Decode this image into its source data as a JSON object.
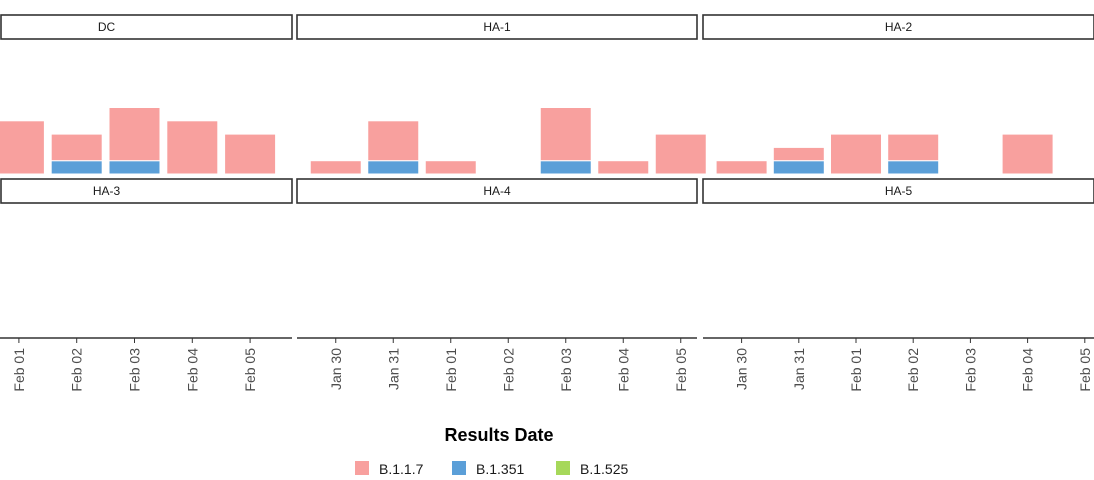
{
  "chart_data": {
    "type": "bar",
    "stacked": true,
    "xlabel": "Results Date",
    "ylabel": "",
    "ylim": [
      0,
      5
    ],
    "grid": false,
    "legend_position": "bottom",
    "series_colors": {
      "B.1.1.7": "#f8a09e",
      "B.1.351": "#5b9fd8",
      "B.1.525": "#a6d85a"
    },
    "legend": [
      {
        "name": "B.1.1.7",
        "color": "#f8a09e"
      },
      {
        "name": "B.1.351",
        "color": "#5b9fd8"
      },
      {
        "name": "B.1.525",
        "color": "#a6d85a"
      }
    ],
    "panels": [
      {
        "name": "DC",
        "dates": [
          "Feb 01",
          "Feb 02",
          "Feb 03",
          "Feb 04",
          "Feb 05"
        ],
        "bars": [
          {
            "date": "Feb 01",
            "B.1.1.7": 4,
            "B.1.351": 0,
            "B.1.525": 0
          },
          {
            "date": "Feb 02",
            "B.1.1.7": 2,
            "B.1.351": 1,
            "B.1.525": 0
          },
          {
            "date": "Feb 03",
            "B.1.1.7": 4,
            "B.1.351": 1,
            "B.1.525": 0
          },
          {
            "date": "Feb 04",
            "B.1.1.7": 4,
            "B.1.351": 0,
            "B.1.525": 0
          },
          {
            "date": "Feb 05",
            "B.1.1.7": 3,
            "B.1.351": 0,
            "B.1.525": 0
          }
        ]
      },
      {
        "name": "HA-1",
        "dates": [
          "Jan 30",
          "Jan 31",
          "Feb 01",
          "Feb 02",
          "Feb 03",
          "Feb 04",
          "Feb 05"
        ],
        "bars": [
          {
            "date": "Jan 30",
            "B.1.1.7": 1,
            "B.1.351": 0,
            "B.1.525": 0
          },
          {
            "date": "Jan 31",
            "B.1.1.7": 3,
            "B.1.351": 1,
            "B.1.525": 0
          },
          {
            "date": "Feb 01",
            "B.1.1.7": 1,
            "B.1.351": 0,
            "B.1.525": 0
          },
          {
            "date": "Feb 03",
            "B.1.1.7": 4,
            "B.1.351": 1,
            "B.1.525": 0
          },
          {
            "date": "Feb 04",
            "B.1.1.7": 1,
            "B.1.351": 0,
            "B.1.525": 0
          },
          {
            "date": "Feb 05",
            "B.1.1.7": 3,
            "B.1.351": 0,
            "B.1.525": 0
          }
        ]
      },
      {
        "name": "HA-2",
        "dates": [
          "Jan 30",
          "Jan 31",
          "Feb 01",
          "Feb 02",
          "Feb 03",
          "Feb 04",
          "Feb 05"
        ],
        "bars": [
          {
            "date": "Jan 30",
            "B.1.1.7": 1,
            "B.1.351": 0,
            "B.1.525": 0
          },
          {
            "date": "Jan 31",
            "B.1.1.7": 1,
            "B.1.351": 1,
            "B.1.525": 0
          },
          {
            "date": "Feb 01",
            "B.1.1.7": 3,
            "B.1.351": 0,
            "B.1.525": 0
          },
          {
            "date": "Feb 02",
            "B.1.1.7": 2,
            "B.1.351": 1,
            "B.1.525": 0
          },
          {
            "date": "Feb 04",
            "B.1.1.7": 3,
            "B.1.351": 0,
            "B.1.525": 0
          }
        ]
      },
      {
        "name": "HA-3",
        "dates": [
          "Feb 01",
          "Feb 02",
          "Feb 03",
          "Feb 04",
          "Feb 05"
        ],
        "bars": []
      },
      {
        "name": "HA-4",
        "dates": [
          "Jan 30",
          "Jan 31",
          "Feb 01",
          "Feb 02",
          "Feb 03",
          "Feb 04",
          "Feb 05"
        ],
        "bars": []
      },
      {
        "name": "HA-5",
        "dates": [
          "Jan 30",
          "Jan 31",
          "Feb 01",
          "Feb 02",
          "Feb 03",
          "Feb 04",
          "Feb 05"
        ],
        "bars": []
      }
    ]
  }
}
